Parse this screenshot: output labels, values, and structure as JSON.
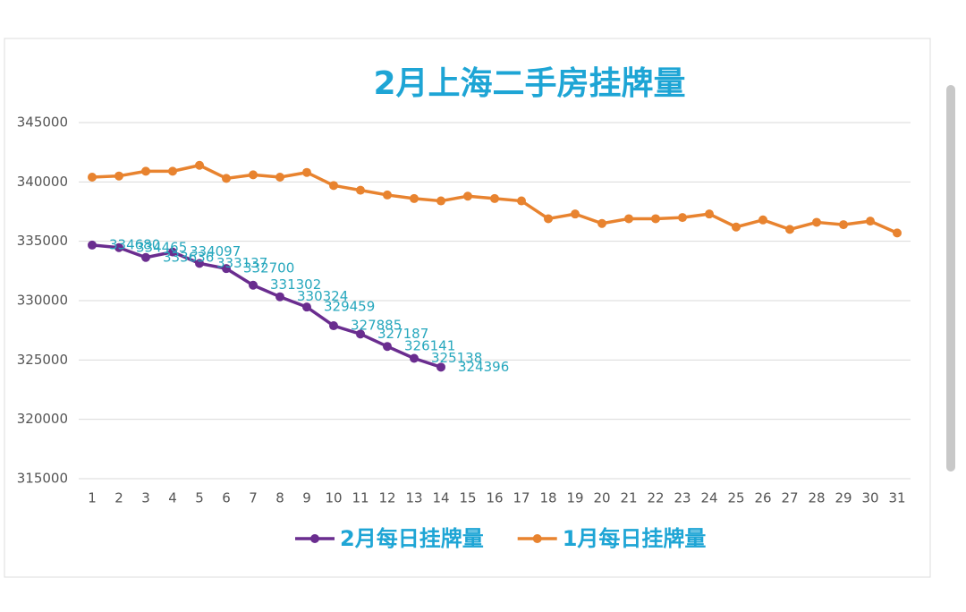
{
  "chart_data": {
    "type": "line",
    "title": "2月上海二手房挂牌量",
    "categories": [
      "1",
      "2",
      "3",
      "4",
      "5",
      "6",
      "7",
      "8",
      "9",
      "10",
      "11",
      "12",
      "13",
      "14",
      "15",
      "16",
      "17",
      "18",
      "19",
      "20",
      "21",
      "22",
      "23",
      "24",
      "25",
      "26",
      "27",
      "28",
      "29",
      "30",
      "31"
    ],
    "series": [
      {
        "name": "2月每日挂牌量",
        "color": "#6a2d8f",
        "data_labels": true,
        "values": [
          334680,
          334465,
          333636,
          334097,
          333137,
          332700,
          331302,
          330324,
          329459,
          327885,
          327187,
          326141,
          325138,
          324396,
          null,
          null,
          null,
          null,
          null,
          null,
          null,
          null,
          null,
          null,
          null,
          null,
          null,
          null,
          null,
          null,
          null
        ]
      },
      {
        "name": "1月每日挂牌量",
        "color": "#e8832f",
        "data_labels": false,
        "values": [
          340400,
          340500,
          340900,
          340900,
          341400,
          340300,
          340600,
          340400,
          340800,
          339700,
          339300,
          338900,
          338600,
          338400,
          338800,
          338600,
          338400,
          336900,
          337300,
          336500,
          336900,
          336900,
          337000,
          337300,
          336200,
          336800,
          336000,
          336600,
          336400,
          336700,
          335700
        ]
      }
    ],
    "ylim": [
      315000,
      345000
    ],
    "yticks": [
      315000,
      320000,
      325000,
      330000,
      335000,
      340000,
      345000
    ],
    "grid": true,
    "legend": "bottom"
  }
}
